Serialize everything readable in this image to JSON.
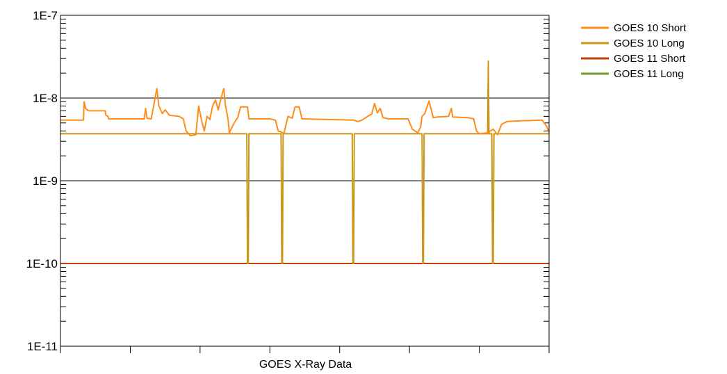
{
  "chart_data": {
    "type": "line",
    "title": "",
    "xlabel": "GOES X-Ray Data",
    "ylabel": "",
    "y_scale": "log",
    "ylim": [
      1e-11,
      1e-07
    ],
    "x_range": [
      0,
      700
    ],
    "y_ticks": [
      {
        "value": 1e-07,
        "label": "1E-7"
      },
      {
        "value": 1e-08,
        "label": "1E-8"
      },
      {
        "value": 1e-09,
        "label": "1E-9"
      },
      {
        "value": 1e-10,
        "label": "1E-10"
      },
      {
        "value": 1e-11,
        "label": "1E-11"
      }
    ],
    "x_tick_count": 7,
    "grid": {
      "major_y": true
    },
    "legend_position": "top-right",
    "series": [
      {
        "name": "GOES 10 Short",
        "color": "#FF8C1A",
        "points": [
          [
            0,
            5.4e-09
          ],
          [
            33,
            5.4e-09
          ],
          [
            34,
            9e-09
          ],
          [
            36,
            7.5e-09
          ],
          [
            40,
            7e-09
          ],
          [
            64,
            7e-09
          ],
          [
            65,
            6.2e-09
          ],
          [
            68,
            6e-09
          ],
          [
            69,
            5.6e-09
          ],
          [
            120,
            5.6e-09
          ],
          [
            122,
            7.5e-09
          ],
          [
            124,
            5.7e-09
          ],
          [
            130,
            5.6e-09
          ],
          [
            134,
            8.5e-09
          ],
          [
            138,
            1.3e-08
          ],
          [
            141,
            8e-09
          ],
          [
            146,
            6.5e-09
          ],
          [
            150,
            7.2e-09
          ],
          [
            156,
            6.2e-09
          ],
          [
            170,
            6e-09
          ],
          [
            176,
            5.6e-09
          ],
          [
            180,
            4e-09
          ],
          [
            186,
            3.5e-09
          ],
          [
            194,
            3.6e-09
          ],
          [
            198,
            8e-09
          ],
          [
            203,
            5e-09
          ],
          [
            206,
            4e-09
          ],
          [
            210,
            6e-09
          ],
          [
            214,
            5.5e-09
          ],
          [
            218,
            8e-09
          ],
          [
            222,
            9.5e-09
          ],
          [
            226,
            7.2e-09
          ],
          [
            230,
            1e-08
          ],
          [
            234,
            1.3e-08
          ],
          [
            236,
            8.5e-09
          ],
          [
            240,
            5.6e-09
          ],
          [
            242,
            3.8e-09
          ],
          [
            246,
            4.5e-09
          ],
          [
            250,
            5.2e-09
          ],
          [
            254,
            5.8e-09
          ],
          [
            258,
            7.8e-09
          ],
          [
            268,
            7.8e-09
          ],
          [
            270,
            5.6e-09
          ],
          [
            300,
            5.6e-09
          ],
          [
            308,
            5.4e-09
          ],
          [
            312,
            4e-09
          ],
          [
            316,
            3.9e-09
          ],
          [
            320,
            3.7e-09
          ],
          [
            326,
            6e-09
          ],
          [
            332,
            5.7e-09
          ],
          [
            336,
            7.8e-09
          ],
          [
            342,
            7.8e-09
          ],
          [
            346,
            5.6e-09
          ],
          [
            420,
            5.4e-09
          ],
          [
            426,
            5.2e-09
          ],
          [
            432,
            5.4e-09
          ],
          [
            440,
            6e-09
          ],
          [
            446,
            6.4e-09
          ],
          [
            450,
            8.6e-09
          ],
          [
            454,
            6.6e-09
          ],
          [
            458,
            7.5e-09
          ],
          [
            462,
            5.8e-09
          ],
          [
            470,
            5.6e-09
          ],
          [
            498,
            5.6e-09
          ],
          [
            504,
            4.2e-09
          ],
          [
            512,
            3.8e-09
          ],
          [
            516,
            4.5e-09
          ],
          [
            518,
            6e-09
          ],
          [
            522,
            6.5e-09
          ],
          [
            528,
            9.2e-09
          ],
          [
            534,
            5.8e-09
          ],
          [
            540,
            5.9e-09
          ],
          [
            556,
            6e-09
          ],
          [
            560,
            7.5e-09
          ],
          [
            562,
            5.9e-09
          ],
          [
            584,
            5.8e-09
          ],
          [
            592,
            5.6e-09
          ],
          [
            596,
            4e-09
          ],
          [
            600,
            3.7e-09
          ],
          [
            612,
            3.8e-09
          ],
          [
            620,
            4.2e-09
          ],
          [
            626,
            3.6e-09
          ],
          [
            632,
            4.8e-09
          ],
          [
            640,
            5.2e-09
          ],
          [
            660,
            5.3e-09
          ],
          [
            690,
            5.4e-09
          ],
          [
            696,
            4.6e-09
          ],
          [
            700,
            3.9e-09
          ]
        ]
      },
      {
        "name": "GOES 10 Long",
        "color": "#C9961A",
        "points": [
          [
            0,
            3.7e-09
          ],
          [
            267,
            3.7e-09
          ],
          [
            268,
            1e-10
          ],
          [
            269,
            1e-10
          ],
          [
            270,
            3.7e-09
          ],
          [
            316,
            3.7e-09
          ],
          [
            317,
            1e-10
          ],
          [
            318,
            1e-10
          ],
          [
            319,
            3.7e-09
          ],
          [
            418,
            3.7e-09
          ],
          [
            419,
            1e-10
          ],
          [
            420,
            1e-10
          ],
          [
            421,
            3.7e-09
          ],
          [
            518,
            3.7e-09
          ],
          [
            519,
            1e-10
          ],
          [
            520,
            1e-10
          ],
          [
            521,
            3.7e-09
          ],
          [
            612,
            3.7e-09
          ],
          [
            613,
            2.8e-08
          ],
          [
            614,
            3.7e-09
          ],
          [
            618,
            3.7e-09
          ],
          [
            619,
            1e-10
          ],
          [
            620,
            1e-10
          ],
          [
            621,
            3.7e-09
          ],
          [
            700,
            3.7e-09
          ]
        ]
      },
      {
        "name": "GOES 11 Short",
        "color": "#C0400A",
        "points": [
          [
            0,
            1e-10
          ],
          [
            700,
            1e-10
          ]
        ]
      },
      {
        "name": "GOES 11 Long",
        "color": "#6E9A2E",
        "points": [
          [
            0,
            1e-10
          ],
          [
            700,
            1e-10
          ]
        ]
      }
    ]
  }
}
